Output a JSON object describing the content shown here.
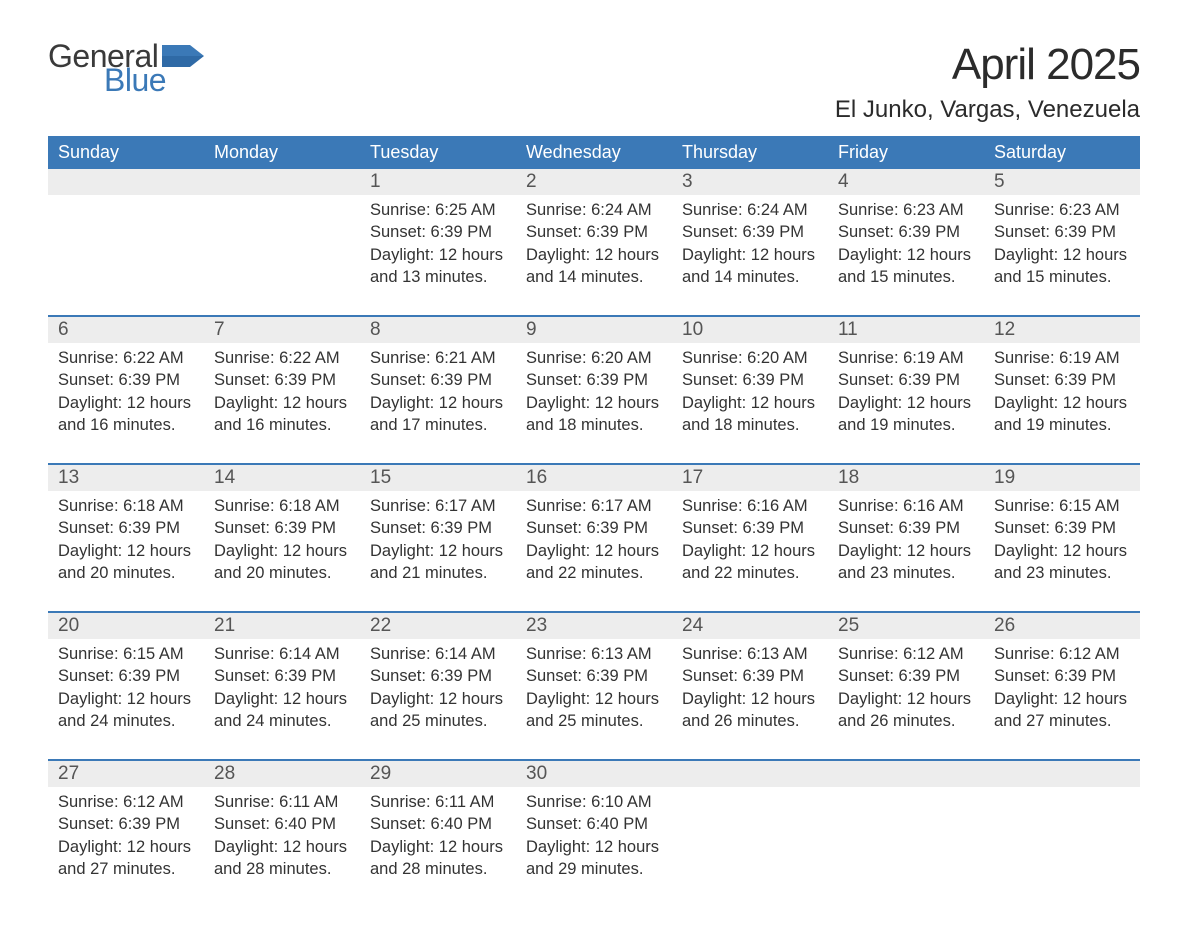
{
  "logo": {
    "general": "General",
    "blue": "Blue",
    "flag_color": "#3b79b7"
  },
  "title": "April 2025",
  "location": "El Junko, Vargas, Venezuela",
  "colors": {
    "header_bg": "#3b79b7",
    "header_text": "#ffffff",
    "daynum_bg": "#ededed",
    "border": "#3b79b7",
    "text": "#333333",
    "page_bg": "#ffffff"
  },
  "weekdays": [
    "Sunday",
    "Monday",
    "Tuesday",
    "Wednesday",
    "Thursday",
    "Friday",
    "Saturday"
  ],
  "weeks": [
    [
      null,
      null,
      {
        "n": "1",
        "sr": "Sunrise: 6:25 AM",
        "ss": "Sunset: 6:39 PM",
        "d1": "Daylight: 12 hours",
        "d2": "and 13 minutes."
      },
      {
        "n": "2",
        "sr": "Sunrise: 6:24 AM",
        "ss": "Sunset: 6:39 PM",
        "d1": "Daylight: 12 hours",
        "d2": "and 14 minutes."
      },
      {
        "n": "3",
        "sr": "Sunrise: 6:24 AM",
        "ss": "Sunset: 6:39 PM",
        "d1": "Daylight: 12 hours",
        "d2": "and 14 minutes."
      },
      {
        "n": "4",
        "sr": "Sunrise: 6:23 AM",
        "ss": "Sunset: 6:39 PM",
        "d1": "Daylight: 12 hours",
        "d2": "and 15 minutes."
      },
      {
        "n": "5",
        "sr": "Sunrise: 6:23 AM",
        "ss": "Sunset: 6:39 PM",
        "d1": "Daylight: 12 hours",
        "d2": "and 15 minutes."
      }
    ],
    [
      {
        "n": "6",
        "sr": "Sunrise: 6:22 AM",
        "ss": "Sunset: 6:39 PM",
        "d1": "Daylight: 12 hours",
        "d2": "and 16 minutes."
      },
      {
        "n": "7",
        "sr": "Sunrise: 6:22 AM",
        "ss": "Sunset: 6:39 PM",
        "d1": "Daylight: 12 hours",
        "d2": "and 16 minutes."
      },
      {
        "n": "8",
        "sr": "Sunrise: 6:21 AM",
        "ss": "Sunset: 6:39 PM",
        "d1": "Daylight: 12 hours",
        "d2": "and 17 minutes."
      },
      {
        "n": "9",
        "sr": "Sunrise: 6:20 AM",
        "ss": "Sunset: 6:39 PM",
        "d1": "Daylight: 12 hours",
        "d2": "and 18 minutes."
      },
      {
        "n": "10",
        "sr": "Sunrise: 6:20 AM",
        "ss": "Sunset: 6:39 PM",
        "d1": "Daylight: 12 hours",
        "d2": "and 18 minutes."
      },
      {
        "n": "11",
        "sr": "Sunrise: 6:19 AM",
        "ss": "Sunset: 6:39 PM",
        "d1": "Daylight: 12 hours",
        "d2": "and 19 minutes."
      },
      {
        "n": "12",
        "sr": "Sunrise: 6:19 AM",
        "ss": "Sunset: 6:39 PM",
        "d1": "Daylight: 12 hours",
        "d2": "and 19 minutes."
      }
    ],
    [
      {
        "n": "13",
        "sr": "Sunrise: 6:18 AM",
        "ss": "Sunset: 6:39 PM",
        "d1": "Daylight: 12 hours",
        "d2": "and 20 minutes."
      },
      {
        "n": "14",
        "sr": "Sunrise: 6:18 AM",
        "ss": "Sunset: 6:39 PM",
        "d1": "Daylight: 12 hours",
        "d2": "and 20 minutes."
      },
      {
        "n": "15",
        "sr": "Sunrise: 6:17 AM",
        "ss": "Sunset: 6:39 PM",
        "d1": "Daylight: 12 hours",
        "d2": "and 21 minutes."
      },
      {
        "n": "16",
        "sr": "Sunrise: 6:17 AM",
        "ss": "Sunset: 6:39 PM",
        "d1": "Daylight: 12 hours",
        "d2": "and 22 minutes."
      },
      {
        "n": "17",
        "sr": "Sunrise: 6:16 AM",
        "ss": "Sunset: 6:39 PM",
        "d1": "Daylight: 12 hours",
        "d2": "and 22 minutes."
      },
      {
        "n": "18",
        "sr": "Sunrise: 6:16 AM",
        "ss": "Sunset: 6:39 PM",
        "d1": "Daylight: 12 hours",
        "d2": "and 23 minutes."
      },
      {
        "n": "19",
        "sr": "Sunrise: 6:15 AM",
        "ss": "Sunset: 6:39 PM",
        "d1": "Daylight: 12 hours",
        "d2": "and 23 minutes."
      }
    ],
    [
      {
        "n": "20",
        "sr": "Sunrise: 6:15 AM",
        "ss": "Sunset: 6:39 PM",
        "d1": "Daylight: 12 hours",
        "d2": "and 24 minutes."
      },
      {
        "n": "21",
        "sr": "Sunrise: 6:14 AM",
        "ss": "Sunset: 6:39 PM",
        "d1": "Daylight: 12 hours",
        "d2": "and 24 minutes."
      },
      {
        "n": "22",
        "sr": "Sunrise: 6:14 AM",
        "ss": "Sunset: 6:39 PM",
        "d1": "Daylight: 12 hours",
        "d2": "and 25 minutes."
      },
      {
        "n": "23",
        "sr": "Sunrise: 6:13 AM",
        "ss": "Sunset: 6:39 PM",
        "d1": "Daylight: 12 hours",
        "d2": "and 25 minutes."
      },
      {
        "n": "24",
        "sr": "Sunrise: 6:13 AM",
        "ss": "Sunset: 6:39 PM",
        "d1": "Daylight: 12 hours",
        "d2": "and 26 minutes."
      },
      {
        "n": "25",
        "sr": "Sunrise: 6:12 AM",
        "ss": "Sunset: 6:39 PM",
        "d1": "Daylight: 12 hours",
        "d2": "and 26 minutes."
      },
      {
        "n": "26",
        "sr": "Sunrise: 6:12 AM",
        "ss": "Sunset: 6:39 PM",
        "d1": "Daylight: 12 hours",
        "d2": "and 27 minutes."
      }
    ],
    [
      {
        "n": "27",
        "sr": "Sunrise: 6:12 AM",
        "ss": "Sunset: 6:39 PM",
        "d1": "Daylight: 12 hours",
        "d2": "and 27 minutes."
      },
      {
        "n": "28",
        "sr": "Sunrise: 6:11 AM",
        "ss": "Sunset: 6:40 PM",
        "d1": "Daylight: 12 hours",
        "d2": "and 28 minutes."
      },
      {
        "n": "29",
        "sr": "Sunrise: 6:11 AM",
        "ss": "Sunset: 6:40 PM",
        "d1": "Daylight: 12 hours",
        "d2": "and 28 minutes."
      },
      {
        "n": "30",
        "sr": "Sunrise: 6:10 AM",
        "ss": "Sunset: 6:40 PM",
        "d1": "Daylight: 12 hours",
        "d2": "and 29 minutes."
      },
      null,
      null,
      null
    ]
  ]
}
